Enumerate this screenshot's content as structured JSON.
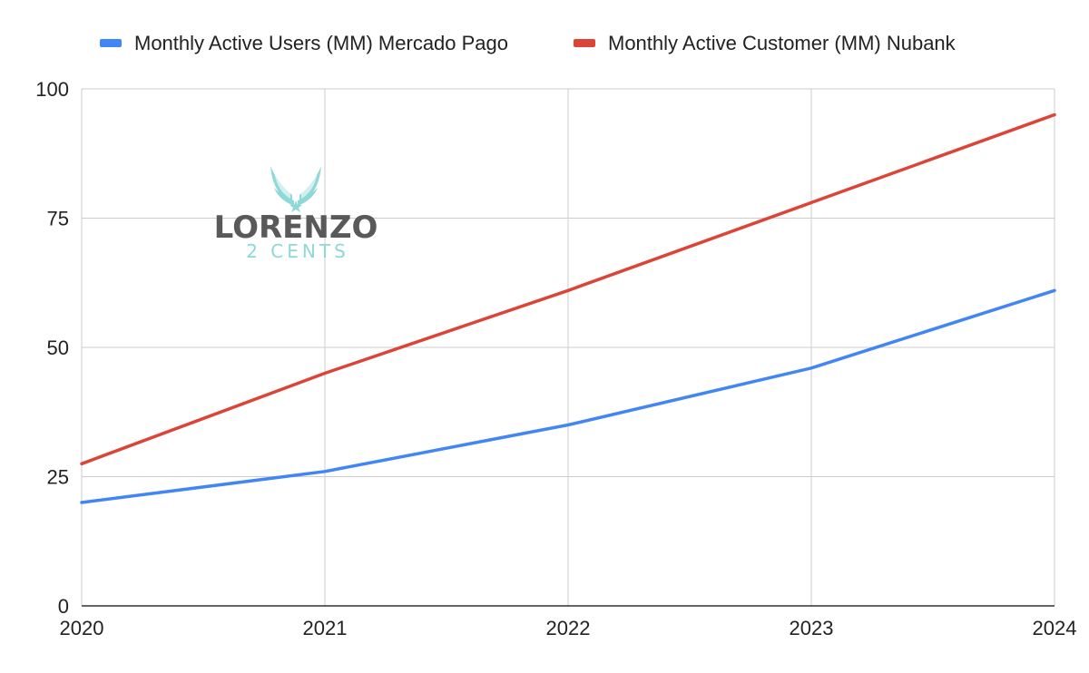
{
  "chart_data": {
    "type": "line",
    "x": [
      "2020",
      "2021",
      "2022",
      "2023",
      "2024"
    ],
    "ylim": [
      0,
      100
    ],
    "yticks": [
      0,
      25,
      50,
      75,
      100
    ],
    "grid": true,
    "legend_position": "top",
    "series": [
      {
        "name": "Monthly Active Users (MM) Mercado Pago",
        "color": "#4285f4",
        "values": [
          20,
          26,
          35,
          46,
          61
        ]
      },
      {
        "name": "Monthly Active Customer (MM) Nubank",
        "color": "#db4437",
        "values": [
          27.5,
          45,
          61,
          78,
          95
        ]
      }
    ]
  },
  "watermark": {
    "line1": "LORENZO",
    "line2": "2 CENTS",
    "icon": "wings-emblem-icon"
  }
}
